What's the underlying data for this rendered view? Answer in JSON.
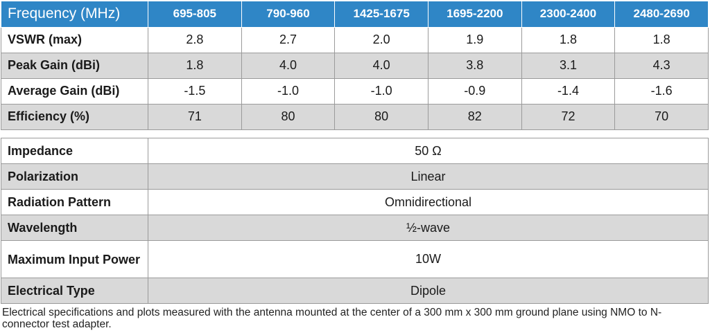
{
  "frequency_table": {
    "header_label": "Frequency (MHz)",
    "bands": [
      "695-805",
      "790-960",
      "1425-1675",
      "1695-2200",
      "2300-2400",
      "2480-2690"
    ],
    "rows": [
      {
        "label": "VSWR (max)",
        "values": [
          "2.8",
          "2.7",
          "2.0",
          "1.9",
          "1.8",
          "1.8"
        ]
      },
      {
        "label": "Peak Gain (dBi)",
        "values": [
          "1.8",
          "4.0",
          "4.0",
          "3.8",
          "3.1",
          "4.3"
        ]
      },
      {
        "label": "Average Gain (dBi)",
        "values": [
          "-1.5",
          "-1.0",
          "-1.0",
          "-0.9",
          "-1.4",
          "-1.6"
        ]
      },
      {
        "label": "Efficiency (%)",
        "values": [
          "71",
          "80",
          "80",
          "82",
          "72",
          "70"
        ]
      }
    ]
  },
  "general_table": {
    "rows": [
      {
        "label": "Impedance",
        "value": "50 Ω"
      },
      {
        "label": "Polarization",
        "value": "Linear"
      },
      {
        "label": "Radiation Pattern",
        "value": "Omnidirectional"
      },
      {
        "label": "Wavelength",
        "value": "½-wave"
      },
      {
        "label": "Maximum Input Power",
        "value": "10W"
      },
      {
        "label": "Electrical Type",
        "value": "Dipole"
      }
    ]
  },
  "footnote": "Electrical specifications and plots measured with the antenna mounted at the center of a 300 mm x 300 mm ground plane using NMO to N-connector test adapter.",
  "colors": {
    "header_bg": "#2f86c6",
    "shaded_row": "#d9d9d9",
    "border": "#9a9a9a"
  }
}
